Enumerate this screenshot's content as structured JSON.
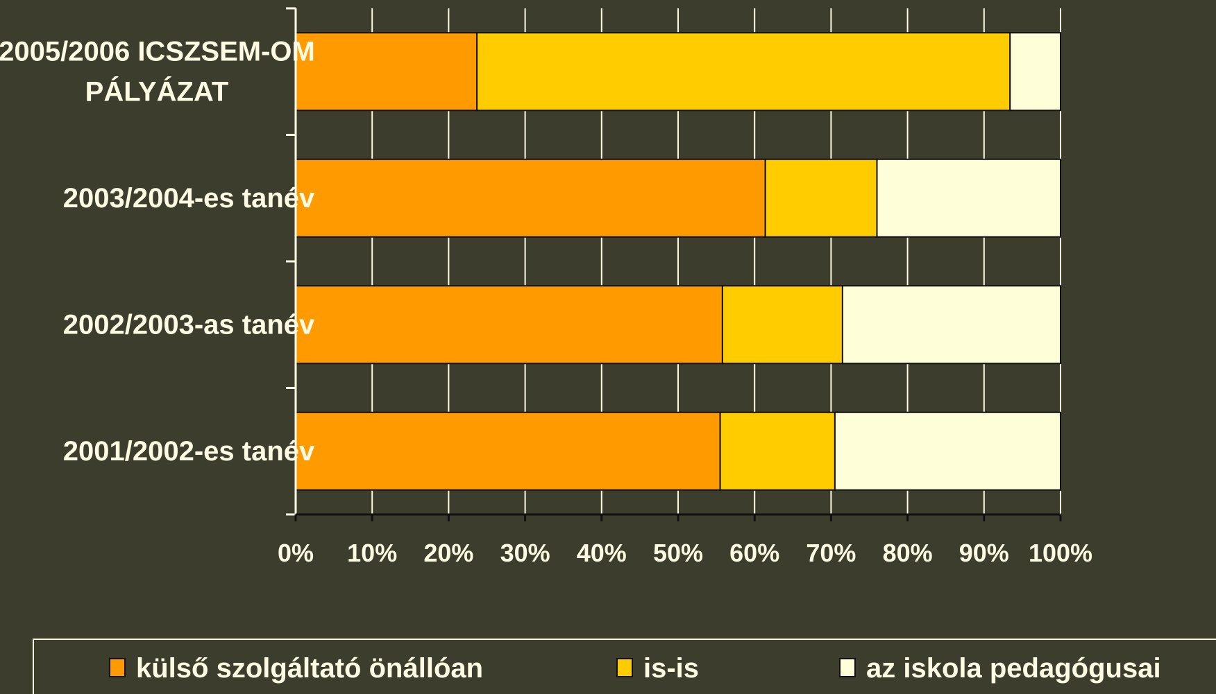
{
  "chart_data": {
    "type": "bar",
    "orientation": "horizontal",
    "stacked": "percent",
    "categories": [
      [
        "2005/2006 ICSZSEM-OM",
        "PÁLYÁZAT"
      ],
      [
        "2003/2004-es tanév"
      ],
      [
        "2002/2003-as tanév"
      ],
      [
        "2001/2002-es tanév"
      ]
    ],
    "series": [
      {
        "name": "külső szolgáltató önállóan",
        "color": "#ff9a00",
        "values": [
          23.7,
          61.4,
          55.8,
          55.5
        ]
      },
      {
        "name": "is-is",
        "color": "#ffcc00",
        "values": [
          69.7,
          14.6,
          15.7,
          15.0
        ]
      },
      {
        "name": "az iskola pedagógusai",
        "color": "#fefed8",
        "values": [
          6.6,
          24.0,
          28.5,
          29.5
        ]
      }
    ],
    "xlim": [
      0,
      100
    ],
    "xticks": [
      "0%",
      "10%",
      "20%",
      "30%",
      "40%",
      "50%",
      "60%",
      "70%",
      "80%",
      "90%",
      "100%"
    ],
    "grid": "vertical",
    "legend": "bottom",
    "colors": {
      "background": "#3d3d2d",
      "text": "#fdfbe3",
      "grid": "#fdfbe3"
    }
  }
}
